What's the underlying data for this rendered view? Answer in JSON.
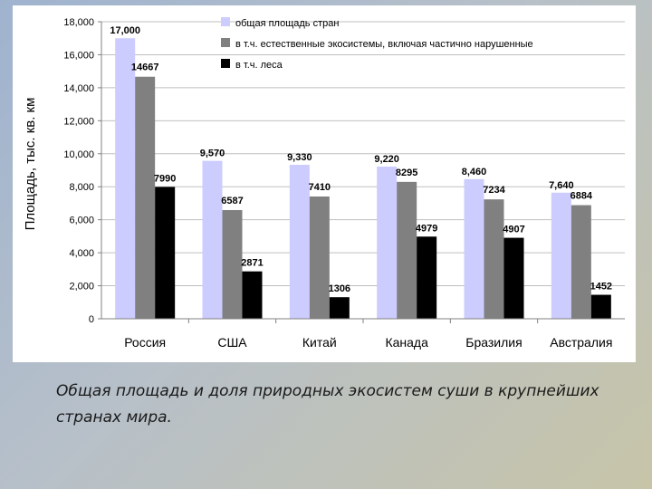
{
  "caption": "Общая площадь и доля природных экосистем суши в крупнейших странах мира.",
  "chart_data": {
    "type": "bar",
    "ylabel": "Площадь, тыс. кв. км",
    "ylim": [
      0,
      18000
    ],
    "yticks": [
      "0",
      "2,000",
      "4,000",
      "6,000",
      "8,000",
      "10,000",
      "12,000",
      "14,000",
      "16,000",
      "18,000"
    ],
    "ytick_values": [
      0,
      2000,
      4000,
      6000,
      8000,
      10000,
      12000,
      14000,
      16000,
      18000
    ],
    "grid": true,
    "legend_position": "top-right",
    "categories": [
      "Россия",
      "США",
      "Китай",
      "Канада",
      "Бразилия",
      "Австралия"
    ],
    "series": [
      {
        "name": "общая площадь стран",
        "color": "#ccccff",
        "values": [
          17000,
          9570,
          9330,
          9220,
          8460,
          7640
        ],
        "labels": [
          "17,000",
          "9,570",
          "9,330",
          "9,220",
          "8,460",
          "7,640"
        ]
      },
      {
        "name": "в т.ч. естественные экосистемы, включая частично нарушенные",
        "color": "#808080",
        "values": [
          14667,
          6587,
          7410,
          8295,
          7234,
          6884
        ],
        "labels": [
          "14667",
          "6587",
          "7410",
          "8295",
          "7234",
          "6884"
        ]
      },
      {
        "name": "в т.ч. леса",
        "color": "#000000",
        "values": [
          7990,
          2871,
          1306,
          4979,
          4907,
          1452
        ],
        "labels": [
          "7990",
          "2871",
          "1306",
          "4979",
          "4907",
          "1452"
        ]
      }
    ]
  }
}
